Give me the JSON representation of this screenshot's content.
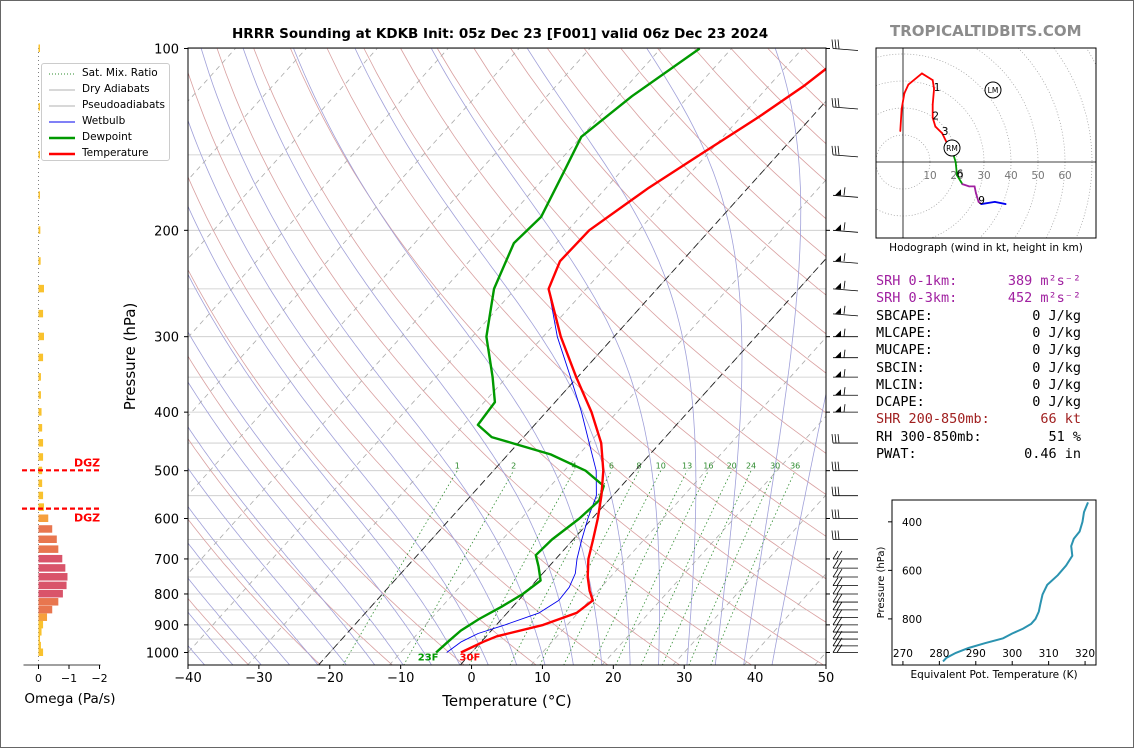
{
  "title": "HRRR Sounding at KDKB Init: 05z Dec 23 [F001] valid 06z Dec 23 2024",
  "watermark": "TROPICALTIDBITS.COM",
  "colors": {
    "temperature": "#ff0000",
    "dewpoint": "#009900",
    "wetbulb": "#0000ee",
    "dry_adiabat": "#d9a0a0",
    "moist_adiabat": "#a0a0d9",
    "mixing_ratio": "#2e8b2e",
    "purple": "#a020a0",
    "brown": "#a02020"
  },
  "chart_data": [
    {
      "type": "line",
      "name": "skewt",
      "title": "HRRR Sounding at KDKB Init: 05z Dec 23 [F001] valid 06z Dec 23 2024",
      "xlabel": "Temperature (°C)",
      "ylabel": "Pressure (hPa)",
      "xlim": [
        -40,
        50
      ],
      "ylim": [
        1050,
        100
      ],
      "yscale": "log",
      "x_ticks": [
        "−40",
        "−30",
        "−20",
        "−10",
        "0",
        "10",
        "20",
        "30",
        "40",
        "50"
      ],
      "y_ticks": [
        "100",
        "200",
        "300",
        "400",
        "500",
        "600",
        "700",
        "800",
        "900",
        "1000"
      ],
      "legend": {
        "position": "top-left",
        "entries": [
          "Sat. Mix. Ratio",
          "Dry Adiabats",
          "Pseudoadiabats",
          "Wetbulb",
          "Dewpoint",
          "Temperature"
        ]
      },
      "temperature": [
        [
          1000,
          -1.5
        ],
        [
          960,
          0.3
        ],
        [
          940,
          1.5
        ],
        [
          900,
          6.6
        ],
        [
          860,
          9.8
        ],
        [
          820,
          10.5
        ],
        [
          790,
          8.8
        ],
        [
          750,
          6.8
        ],
        [
          700,
          4.6
        ],
        [
          650,
          2.8
        ],
        [
          600,
          0.8
        ],
        [
          550,
          -1.6
        ],
        [
          500,
          -4.5
        ],
        [
          450,
          -8.3
        ],
        [
          400,
          -13.6
        ],
        [
          350,
          -20.2
        ],
        [
          300,
          -27.5
        ],
        [
          250,
          -35.3
        ],
        [
          225,
          -37.2
        ],
        [
          200,
          -37.0
        ],
        [
          170,
          -34.0
        ],
        [
          150,
          -31.0
        ],
        [
          130,
          -27.5
        ],
        [
          115,
          -25.0
        ],
        [
          100,
          -23.0
        ]
      ],
      "dewpoint": [
        [
          1000,
          -5.0
        ],
        [
          960,
          -4.7
        ],
        [
          920,
          -4.3
        ],
        [
          880,
          -3.2
        ],
        [
          840,
          -1.6
        ],
        [
          800,
          -0.2
        ],
        [
          760,
          0.6
        ],
        [
          720,
          -1.5
        ],
        [
          690,
          -3.3
        ],
        [
          650,
          -3.0
        ],
        [
          600,
          -1.8
        ],
        [
          560,
          -1.3
        ],
        [
          530,
          -2.5
        ],
        [
          500,
          -7.0
        ],
        [
          470,
          -14.0
        ],
        [
          440,
          -24.5
        ],
        [
          420,
          -28.0
        ],
        [
          385,
          -28.5
        ],
        [
          350,
          -32.0
        ],
        [
          300,
          -38.0
        ],
        [
          250,
          -43.0
        ],
        [
          210,
          -46.0
        ],
        [
          190,
          -45.5
        ],
        [
          160,
          -48.0
        ],
        [
          140,
          -50.0
        ],
        [
          120,
          -48.0
        ],
        [
          100,
          -44.5
        ]
      ],
      "wetbulb": [
        [
          1000,
          -3.5
        ],
        [
          960,
          -2.8
        ],
        [
          930,
          -1.5
        ],
        [
          900,
          1.2
        ],
        [
          860,
          4.5
        ],
        [
          820,
          5.7
        ],
        [
          780,
          5.5
        ],
        [
          740,
          4.6
        ],
        [
          700,
          3.0
        ],
        [
          650,
          1.2
        ],
        [
          600,
          -0.6
        ],
        [
          550,
          -2.3
        ],
        [
          500,
          -5.5
        ],
        [
          450,
          -10.0
        ],
        [
          400,
          -15.0
        ],
        [
          350,
          -21.0
        ],
        [
          300,
          -28.0
        ],
        [
          250,
          -35.3
        ],
        [
          225,
          -37.2
        ],
        [
          200,
          -37.0
        ],
        [
          170,
          -34.0
        ],
        [
          150,
          -31.0
        ],
        [
          130,
          -27.5
        ],
        [
          115,
          -25.0
        ],
        [
          100,
          -23.0
        ]
      ],
      "mixing_ratio_labels": [
        "1",
        "2",
        "4",
        "6",
        "8",
        "10",
        "13",
        "16",
        "20",
        "24",
        "30",
        "36"
      ],
      "surface_labels": {
        "dewpoint": "23F",
        "temperature": "30F"
      }
    },
    {
      "type": "bar",
      "name": "omega",
      "xlabel": "Omega (Pa/s)",
      "x_ticks": [
        "0",
        "−1",
        "−2"
      ],
      "xlim": [
        0,
        -2.2
      ],
      "dgz_label": "DGZ",
      "dgz_top_hpa": 505,
      "dgz_bottom_hpa": 580,
      "levels": [
        1000,
        975,
        950,
        925,
        900,
        875,
        850,
        825,
        800,
        775,
        750,
        725,
        700,
        675,
        650,
        625,
        600,
        575,
        550,
        525,
        500,
        475,
        450,
        425,
        400,
        375,
        350,
        325,
        300,
        275,
        250,
        225,
        200,
        175,
        150,
        125,
        100
      ],
      "values": [
        -0.15,
        -0.08,
        -0.05,
        -0.1,
        -0.15,
        -0.28,
        -0.45,
        -0.65,
        -0.8,
        -0.92,
        -0.95,
        -0.88,
        -0.78,
        -0.65,
        -0.6,
        -0.45,
        -0.32,
        -0.18,
        -0.15,
        -0.12,
        -0.12,
        -0.15,
        -0.15,
        -0.12,
        -0.1,
        -0.08,
        -0.08,
        -0.15,
        -0.18,
        -0.15,
        -0.18,
        -0.07,
        -0.06,
        -0.04,
        -0.03,
        -0.02,
        -0.02
      ]
    },
    {
      "type": "line",
      "name": "hodograph",
      "xlabel": "Hodograph (wind in kt, height in km)",
      "rings": [
        "10",
        "20",
        "30",
        "40",
        "50",
        "60"
      ],
      "height_labels": [
        "1",
        "2",
        "3",
        "6",
        "9"
      ],
      "markers": [
        "RM",
        "LM"
      ],
      "points": [
        [
          -2,
          14
        ],
        [
          -1,
          24
        ],
        [
          1,
          31
        ],
        [
          4,
          35
        ],
        [
          14,
          40
        ],
        [
          22,
          37
        ],
        [
          23,
          33
        ],
        [
          22,
          26
        ],
        [
          22,
          20
        ],
        [
          24,
          16
        ],
        [
          29,
          13
        ],
        [
          33,
          8
        ],
        [
          37,
          4
        ],
        [
          39,
          0
        ],
        [
          40,
          -6
        ],
        [
          44,
          -10
        ],
        [
          49,
          -11
        ],
        [
          53,
          -11
        ],
        [
          54,
          -14
        ],
        [
          56,
          -18
        ],
        [
          58,
          -19
        ],
        [
          68,
          -18
        ],
        [
          76,
          -19
        ]
      ],
      "segment_colors": [
        "#ff0000",
        "#ff0000",
        "#ff0000",
        "#ff0000",
        "#ff0000",
        "#ff0000",
        "#ff0000",
        "#ff0000",
        "#ff0000",
        "#ff0000",
        "#ff0000",
        "#009900",
        "#009900",
        "#009900",
        "#009900",
        "#a020a0",
        "#a020a0",
        "#a020a0",
        "#a020a0",
        "#a020a0",
        "#0000ee",
        "#0000ee"
      ]
    },
    {
      "type": "line",
      "name": "theta_e",
      "xlabel": "Equivalent Pot. Temperature (K)",
      "ylabel": "Pressure (hPa)",
      "x_ticks": [
        "270",
        "280",
        "290",
        "300",
        "310",
        "320"
      ],
      "y_ticks": [
        "400",
        "600",
        "800"
      ],
      "xlim": [
        267,
        323
      ],
      "ylim": [
        990,
        310
      ],
      "points": [
        [
          975,
          281
        ],
        [
          960,
          282
        ],
        [
          940,
          284.5
        ],
        [
          920,
          288
        ],
        [
          900,
          292.5
        ],
        [
          880,
          297.5
        ],
        [
          860,
          300
        ],
        [
          840,
          303
        ],
        [
          820,
          305.2
        ],
        [
          800,
          306.4
        ],
        [
          770,
          307.3
        ],
        [
          740,
          307.7
        ],
        [
          700,
          308.3
        ],
        [
          660,
          309.6
        ],
        [
          620,
          312.5
        ],
        [
          580,
          314.8
        ],
        [
          540,
          316.5
        ],
        [
          500,
          316.2
        ],
        [
          470,
          316.9
        ],
        [
          440,
          318.5
        ],
        [
          400,
          319.3
        ],
        [
          360,
          319.7
        ],
        [
          320,
          320.8
        ]
      ]
    }
  ],
  "stats": [
    {
      "label": "SRH 0-1km:",
      "value": "389 m²s⁻²",
      "color": "#a020a0"
    },
    {
      "label": "SRH 0-3km:",
      "value": "452 m²s⁻²",
      "color": "#a020a0"
    },
    {
      "label": "SBCAPE:",
      "value": "0 J/kg",
      "color": "#000000"
    },
    {
      "label": "MLCAPE:",
      "value": "0 J/kg",
      "color": "#000000"
    },
    {
      "label": "MUCAPE:",
      "value": "0 J/kg",
      "color": "#000000"
    },
    {
      "label": "SBCIN:",
      "value": "0 J/kg",
      "color": "#000000"
    },
    {
      "label": "MLCIN:",
      "value": "0 J/kg",
      "color": "#000000"
    },
    {
      "label": "DCAPE:",
      "value": "0 J/kg",
      "color": "#000000"
    },
    {
      "label": "SHR 200-850mb:",
      "value": "66 kt",
      "color": "#a02020"
    },
    {
      "label": "RH 300-850mb:",
      "value": "51 %",
      "color": "#000000"
    },
    {
      "label": "PWAT:",
      "value": "0.46 in",
      "color": "#000000"
    }
  ]
}
